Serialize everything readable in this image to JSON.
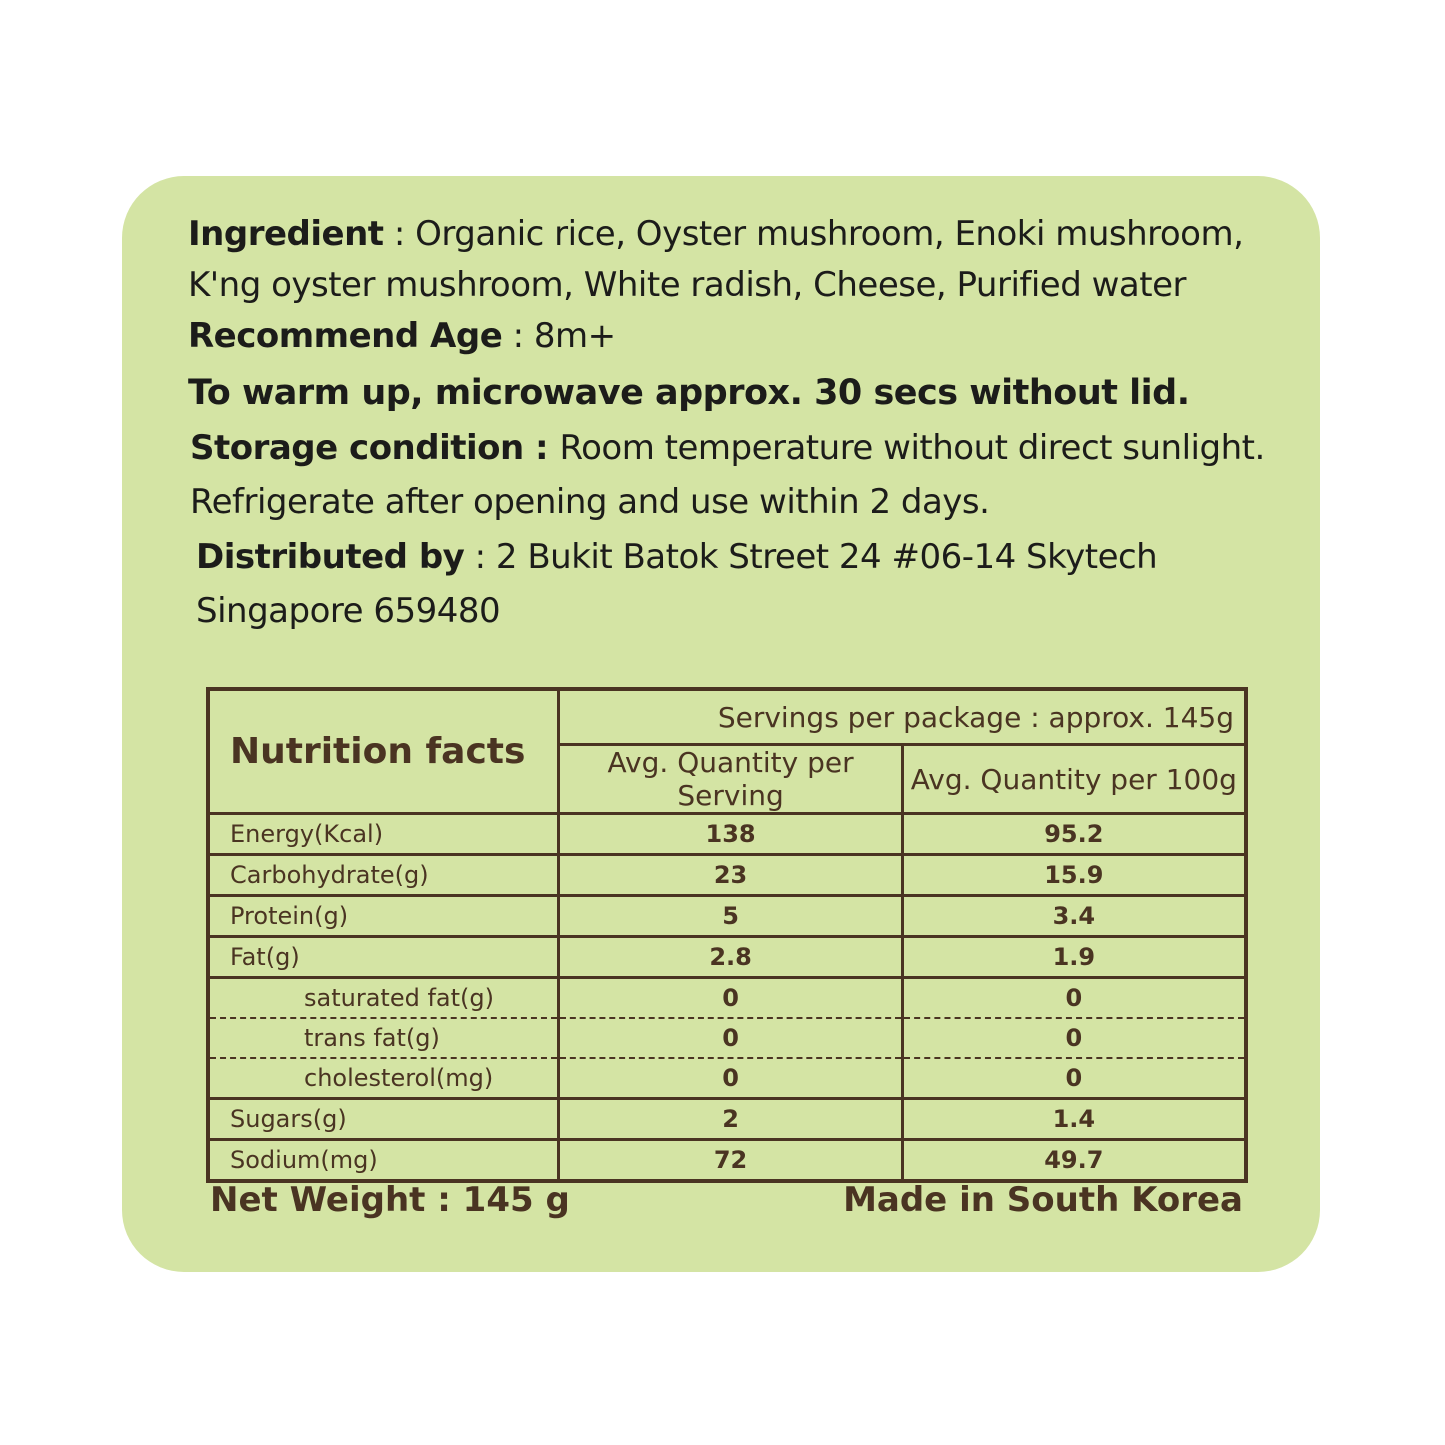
{
  "ingredient": {
    "label": "Ingredient",
    "text1": " : Organic rice, Oyster mushroom, Enoki mushroom,",
    "text2": "K'ng oyster mushroom, White radish, Cheese, Purified water"
  },
  "age": {
    "label": "Recommend Age",
    "value": " : 8m+"
  },
  "warm": "To warm up, microwave approx. 30 secs without lid.",
  "storage": {
    "label": "Storage condition : ",
    "text1": "Room temperature without direct sunlight.",
    "text2": "Refrigerate after opening and use within 2 days."
  },
  "distributor": {
    "label": "Distributed by",
    "text1": " : 2 Bukit Batok Street 24 #06-14 Skytech",
    "text2": "Singapore 659480"
  },
  "nutrition": {
    "title": "Nutrition facts",
    "servings": "Servings per package : approx. 145g",
    "col1": "Avg. Quantity per Serving",
    "col2": "Avg. Quantity per 100g",
    "rows": [
      {
        "name": "Energy(Kcal)",
        "serving": "138",
        "per100": "95.2"
      },
      {
        "name": "Carbohydrate(g)",
        "serving": "23",
        "per100": "15.9"
      },
      {
        "name": "Protein(g)",
        "serving": "5",
        "per100": "3.4"
      },
      {
        "name": "Fat(g)",
        "serving": "2.8",
        "per100": "1.9"
      },
      {
        "name": "saturated fat(g)",
        "serving": "0",
        "per100": "0"
      },
      {
        "name": "trans fat(g)",
        "serving": "0",
        "per100": "0"
      },
      {
        "name": "cholesterol(mg)",
        "serving": "0",
        "per100": "0"
      },
      {
        "name": "Sugars(g)",
        "serving": "2",
        "per100": "1.4"
      },
      {
        "name": "Sodium(mg)",
        "serving": "72",
        "per100": "49.7"
      }
    ]
  },
  "footer": {
    "net_weight": "Net Weight : 145 g",
    "origin": "Made in South Korea"
  },
  "colors": {
    "background": "#d4e4a4",
    "table": "#4a3422"
  }
}
